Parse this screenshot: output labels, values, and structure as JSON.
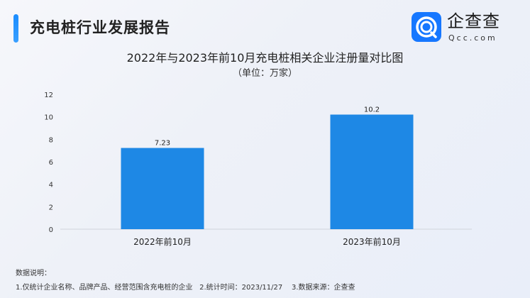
{
  "header": {
    "title": "充电桩行业发展报告"
  },
  "logo": {
    "cn": "企查查",
    "en": "Qcc.com"
  },
  "chart_data": {
    "type": "bar",
    "title": "2022年与2023年前10月充电桩相关企业注册量对比图",
    "subtitle": "（单位：万家）",
    "categories": [
      "2022年前10月",
      "2023年前10月"
    ],
    "values": [
      7.23,
      10.2
    ],
    "data_labels": [
      "7.23",
      "10.2"
    ],
    "ylim": [
      0,
      12
    ],
    "yticks": [
      "0",
      "2",
      "4",
      "6",
      "8",
      "10",
      "12"
    ],
    "grid": false,
    "bar_color": "#1e88e5"
  },
  "notes": {
    "heading": "数据说明：",
    "line": "1.仅统计企业名称、品牌产品、经营范围含充电桩的企业   2.统计时间：2023/11/27    3.数据来源：企查查"
  }
}
